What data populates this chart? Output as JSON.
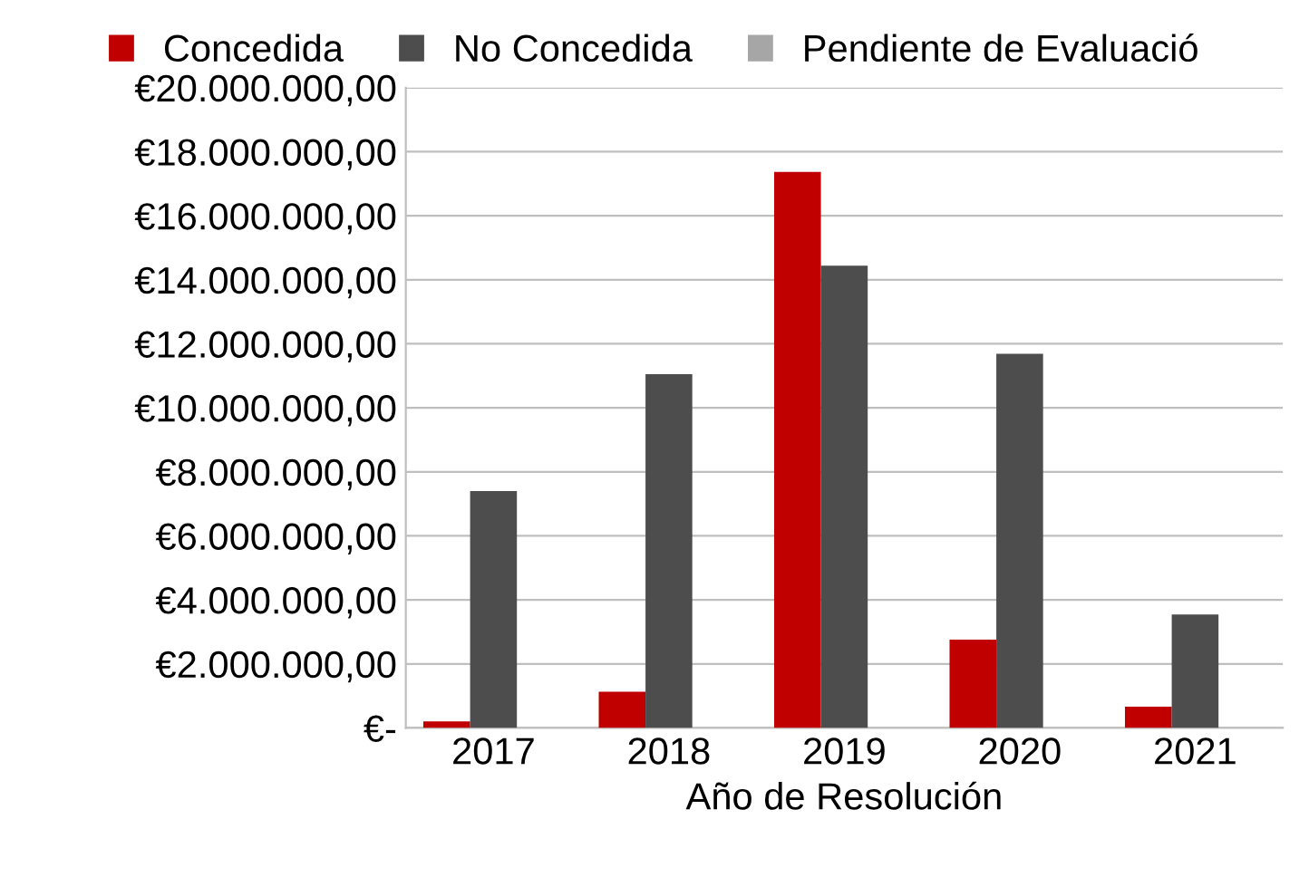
{
  "chart_data": {
    "type": "bar",
    "xlabel": "Año de Resolución",
    "categories": [
      "2017",
      "2018",
      "2019",
      "2020",
      "2021"
    ],
    "series": [
      {
        "name": "Concedida",
        "color": "#c00000",
        "values": [
          200000,
          1130000,
          17370000,
          2760000,
          660000
        ]
      },
      {
        "name": "No Concedida",
        "color": "#4d4d4d",
        "values": [
          7400000,
          11050000,
          14440000,
          11690000,
          3540000
        ]
      },
      {
        "name": "Pendiente de Evaluació",
        "color": "#a6a6a6",
        "values": [
          null,
          null,
          null,
          null,
          null
        ]
      }
    ],
    "ylim": [
      0,
      20000000
    ],
    "yticks": [
      {
        "value": 0,
        "label": "€-"
      },
      {
        "value": 2000000,
        "label": "€2.000.000,00"
      },
      {
        "value": 4000000,
        "label": "€4.000.000,00"
      },
      {
        "value": 6000000,
        "label": "€6.000.000,00"
      },
      {
        "value": 8000000,
        "label": "€8.000.000,00"
      },
      {
        "value": 10000000,
        "label": "€10.000.000,00"
      },
      {
        "value": 12000000,
        "label": "€12.000.000,00"
      },
      {
        "value": 14000000,
        "label": "€14.000.000,00"
      },
      {
        "value": 16000000,
        "label": "€16.000.000,00"
      },
      {
        "value": 18000000,
        "label": "€18.000.000,00"
      },
      {
        "value": 20000000,
        "label": "€20.000.000,00"
      }
    ],
    "grid": "y",
    "legend": "top"
  }
}
